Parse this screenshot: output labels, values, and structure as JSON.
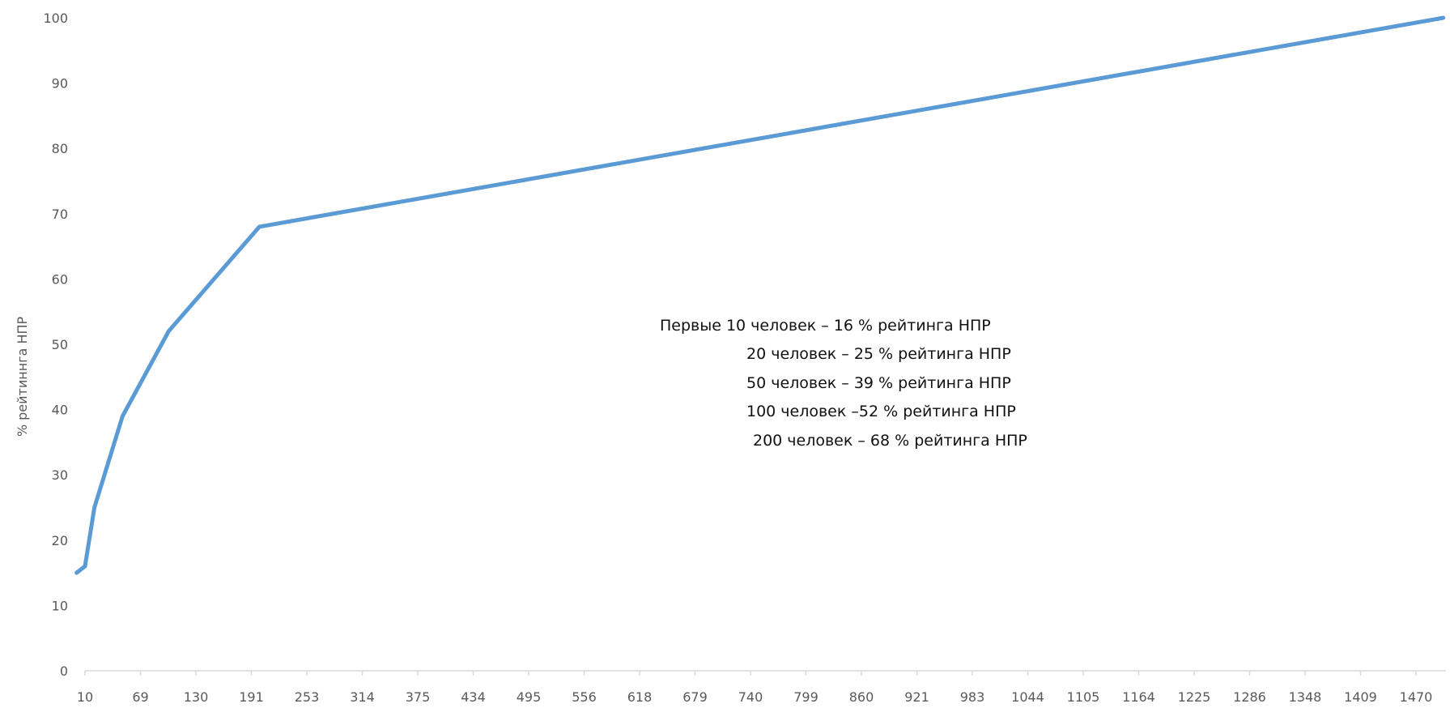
{
  "chart_data": {
    "type": "line",
    "title": "",
    "xlabel": "",
    "ylabel": "% рейтиннга НПР",
    "ylim": [
      0,
      100
    ],
    "y_ticks": [
      "0",
      "10",
      "20",
      "30",
      "40",
      "50",
      "60",
      "70",
      "80",
      "90",
      "100"
    ],
    "x_tick_labels": [
      "10",
      "69",
      "130",
      "191",
      "253",
      "314",
      "375",
      "434",
      "495",
      "556",
      "618",
      "679",
      "740",
      "799",
      "860",
      "921",
      "983",
      "1044",
      "1105",
      "1164",
      "1225",
      "1286",
      "1348",
      "1409",
      "1470"
    ],
    "grid": false,
    "series": [
      {
        "name": "",
        "color": "#5b9bd5",
        "x": [
          1,
          10,
          20,
          50,
          100,
          200,
          1500
        ],
        "y": [
          15,
          16,
          25,
          39,
          52,
          68,
          100
        ]
      }
    ],
    "annotation_lines": [
      "Первые 10 человек – 16 % рейтинга НПР",
      "20 человек – 25 % рейтинга НПР",
      "50 человек – 39 % рейтинга НПР",
      "100 человек –52 % рейтинга НПР",
      "200 человек – 68 % рейтинга НПР"
    ]
  }
}
